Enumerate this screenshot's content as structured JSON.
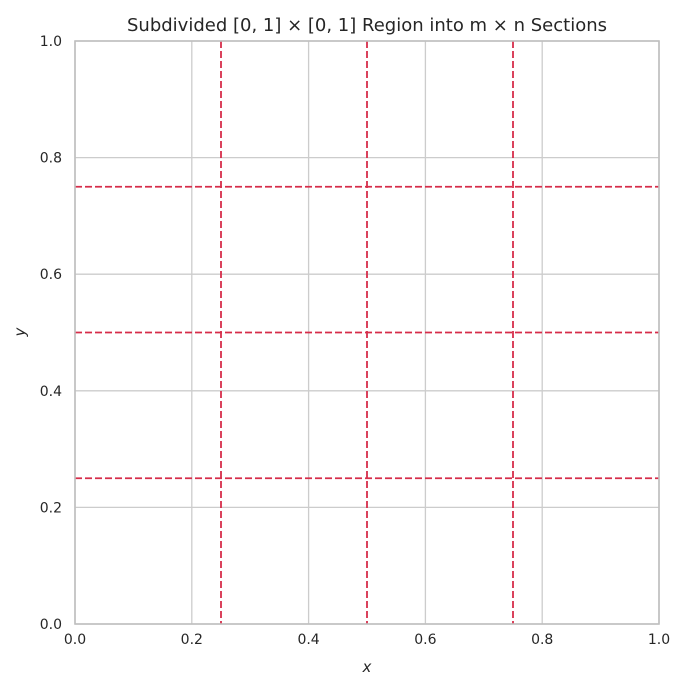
{
  "chart_data": {
    "type": "line",
    "title": "Subdivided [0, 1] × [0, 1] Region into m × n Sections",
    "xlabel": "x",
    "ylabel": "y",
    "xlim": [
      0.0,
      1.0
    ],
    "ylim": [
      0.0,
      1.0
    ],
    "xticks": [
      0.0,
      0.2,
      0.4,
      0.6,
      0.8,
      1.0
    ],
    "yticks": [
      0.0,
      0.2,
      0.4,
      0.6,
      0.8,
      1.0
    ],
    "xtick_labels": [
      "0.0",
      "0.2",
      "0.4",
      "0.6",
      "0.8",
      "1.0"
    ],
    "ytick_labels": [
      "0.0",
      "0.2",
      "0.4",
      "0.6",
      "0.8",
      "1.0"
    ],
    "grid": true,
    "vertical_dividers": [
      0.25,
      0.5,
      0.75
    ],
    "horizontal_dividers": [
      0.25,
      0.5,
      0.75
    ],
    "divider_style": "dashed",
    "divider_color": "#d62d4a",
    "grid_color": "#cccccc",
    "spine_color": "#bfbfbf",
    "text_color": "#262626"
  }
}
